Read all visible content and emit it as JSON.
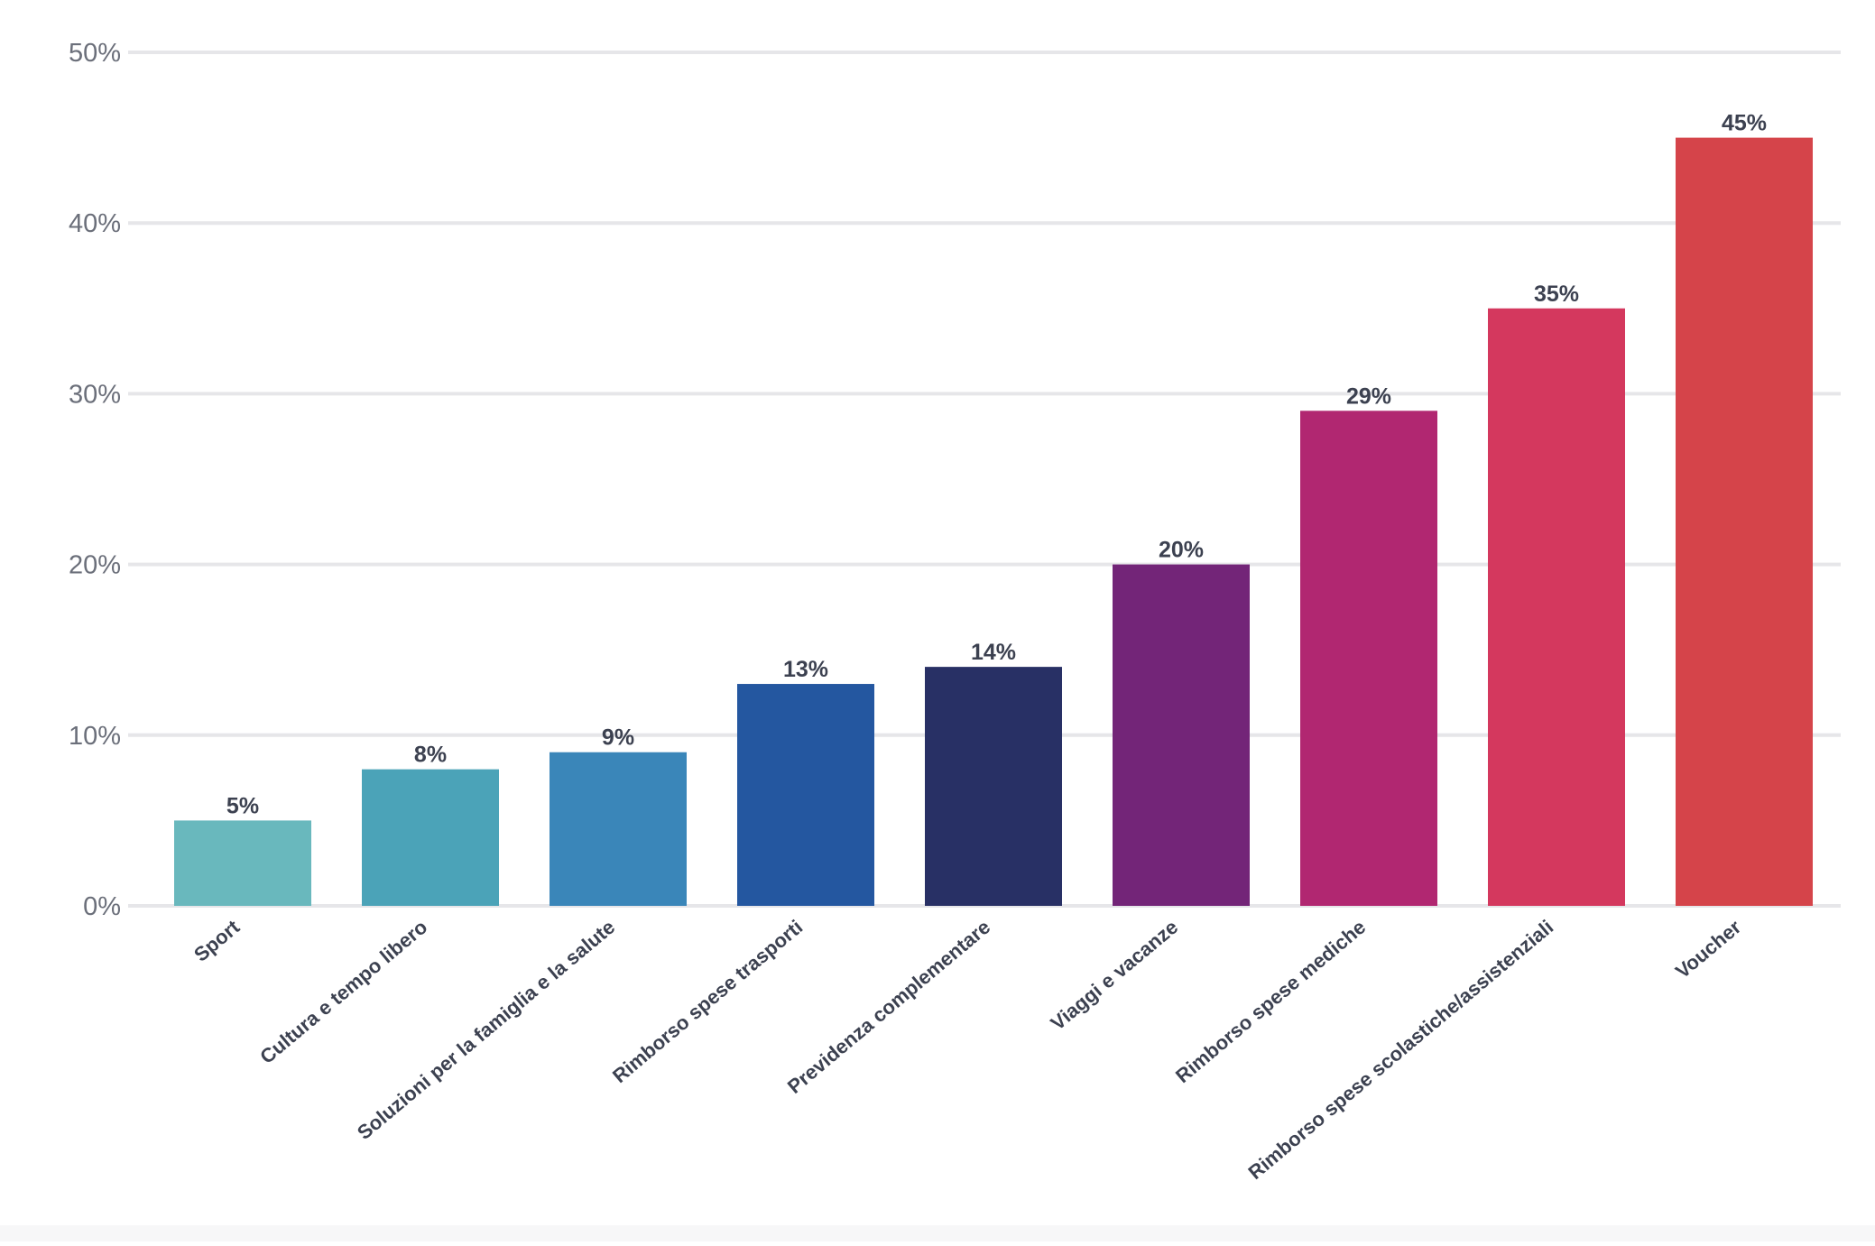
{
  "chart_data": {
    "type": "bar",
    "title": "",
    "xlabel": "",
    "ylabel": "",
    "ylim": [
      0,
      50
    ],
    "yticks": [
      0,
      10,
      20,
      30,
      40,
      50
    ],
    "ytick_labels": [
      "0%",
      "10%",
      "20%",
      "30%",
      "40%",
      "50%"
    ],
    "grid": true,
    "legend": "none",
    "categories": [
      "Sport",
      "Cultura e tempo libero",
      "Soluzioni per la famiglia e la salute",
      "Rimborso spese trasporti",
      "Previdenza complementare",
      "Viaggi e vacanze",
      "Rimborso spese mediche",
      "Rimborso spese scolastiche/assistenziali",
      "Voucher"
    ],
    "values": [
      5,
      8,
      9,
      13,
      14,
      20,
      29,
      35,
      45
    ],
    "value_labels": [
      "5%",
      "8%",
      "9%",
      "13%",
      "14%",
      "20%",
      "29%",
      "35%",
      "45%"
    ],
    "colors": [
      "#69b8bd",
      "#4ba3b8",
      "#3a86b9",
      "#2457a0",
      "#283065",
      "#732578",
      "#b12771",
      "#d4385e",
      "#d5444a"
    ]
  }
}
